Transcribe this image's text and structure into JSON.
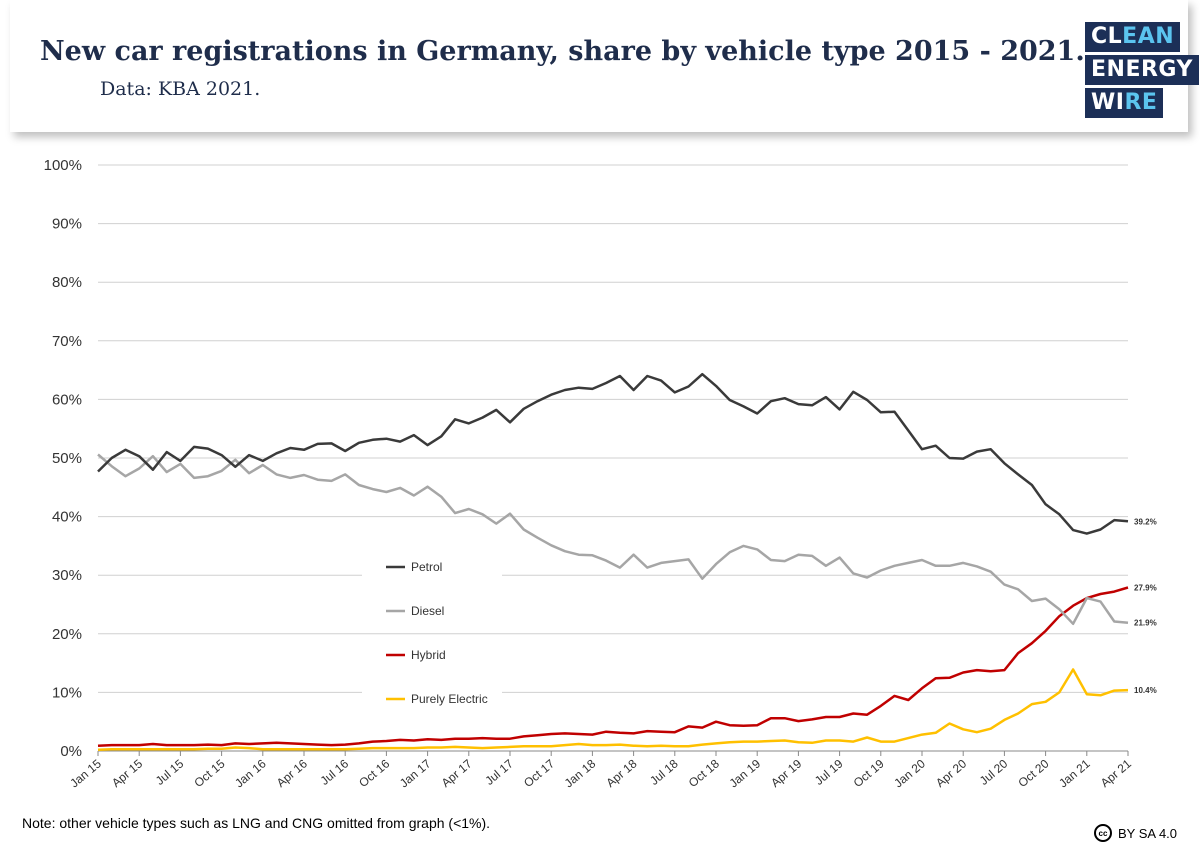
{
  "header": {
    "title": "New car registrations in Germany, share by vehicle type 2015 - 2021.",
    "subtitle": "Data: KBA 2021."
  },
  "logo": {
    "line1_a": "CL",
    "line1_b": "EAN",
    "line2_a": "ENERGY",
    "line2_b": "",
    "line3_a": "WI",
    "line3_b": "RE"
  },
  "footer": {
    "note": "Note: other vehicle types such as LNG and CNG omitted from graph (<1%).",
    "license": "BY SA 4.0",
    "cc_symbol": "cc"
  },
  "colors": {
    "petrol": "#3a3a3a",
    "diesel": "#a6a6a6",
    "hybrid": "#c00000",
    "electric": "#ffc000",
    "grid": "#d0d0d0",
    "logo_bg": "#1c2f57",
    "logo_accent": "#5bc4ef"
  },
  "chart_data": {
    "type": "line",
    "title": "New car registrations in Germany, share by vehicle type 2015 - 2021.",
    "ylim": [
      0,
      100
    ],
    "y_ticks": [
      "0%",
      "10%",
      "20%",
      "30%",
      "40%",
      "50%",
      "60%",
      "70%",
      "80%",
      "90%",
      "100%"
    ],
    "x_tick_labels": [
      "Jan 15",
      "Apr 15",
      "Jul 15",
      "Oct 15",
      "Jan 16",
      "Apr 16",
      "Jul 16",
      "Oct 16",
      "Jan 17",
      "Apr 17",
      "Jul 17",
      "Oct 17",
      "Jan 18",
      "Apr 18",
      "Jul 18",
      "Oct 18",
      "Jan 19",
      "Apr 19",
      "Jul 19",
      "Oct 19",
      "Jan 20",
      "Apr 20",
      "Jul 20",
      "Oct 20",
      "Jan 21",
      "Apr 21"
    ],
    "x_months_count": 76,
    "legend_position": "center-left",
    "grid": true,
    "series": [
      {
        "name": "Petrol",
        "color": "#3a3a3a",
        "end_label": "39.2%",
        "values": [
          47.7,
          50.0,
          51.4,
          50.3,
          48.0,
          51.0,
          49.5,
          51.9,
          51.6,
          50.5,
          48.5,
          50.5,
          49.5,
          50.8,
          51.7,
          51.4,
          52.4,
          52.5,
          51.2,
          52.6,
          53.1,
          53.3,
          52.8,
          53.9,
          52.2,
          53.7,
          56.6,
          55.9,
          56.9,
          58.2,
          56.1,
          58.4,
          59.7,
          60.8,
          61.6,
          62.0,
          61.8,
          62.8,
          64.0,
          61.6,
          64.0,
          63.2,
          61.2,
          62.2,
          64.3,
          62.3,
          59.9,
          58.8,
          57.6,
          59.7,
          60.2,
          59.2,
          59.0,
          60.4,
          58.3,
          61.3,
          59.9,
          57.8,
          57.9,
          54.7,
          51.5,
          52.1,
          50.0,
          49.9,
          51.1,
          51.5,
          49.1,
          47.2,
          45.4,
          42.1,
          40.4,
          37.7,
          37.1,
          37.8,
          39.4,
          39.2
        ]
      },
      {
        "name": "Diesel",
        "color": "#a6a6a6",
        "end_label": "21.9%",
        "values": [
          50.6,
          48.6,
          46.9,
          48.2,
          50.3,
          47.6,
          49.0,
          46.6,
          46.9,
          47.8,
          49.7,
          47.4,
          48.8,
          47.2,
          46.6,
          47.1,
          46.3,
          46.1,
          47.2,
          45.4,
          44.7,
          44.2,
          44.9,
          43.6,
          45.1,
          43.4,
          40.6,
          41.3,
          40.4,
          38.8,
          40.5,
          37.8,
          36.4,
          35.1,
          34.1,
          33.5,
          33.4,
          32.5,
          31.3,
          33.5,
          31.3,
          32.1,
          32.4,
          32.7,
          29.4,
          31.9,
          33.9,
          35.0,
          34.4,
          32.6,
          32.4,
          33.5,
          33.3,
          31.6,
          33.0,
          30.3,
          29.6,
          30.8,
          31.6,
          32.1,
          32.6,
          31.6,
          31.6,
          32.1,
          31.5,
          30.6,
          28.4,
          27.6,
          25.6,
          26.0,
          24.2,
          21.7,
          26.1,
          25.5,
          22.1,
          21.9
        ]
      },
      {
        "name": "Hybrid",
        "color": "#c00000",
        "end_label": "27.9%",
        "values": [
          0.9,
          1.0,
          1.0,
          1.0,
          1.2,
          1.0,
          1.0,
          1.0,
          1.1,
          1.0,
          1.3,
          1.2,
          1.3,
          1.4,
          1.3,
          1.2,
          1.1,
          1.0,
          1.1,
          1.3,
          1.6,
          1.7,
          1.9,
          1.8,
          2.0,
          1.9,
          2.1,
          2.1,
          2.2,
          2.1,
          2.1,
          2.5,
          2.7,
          2.9,
          3.0,
          2.9,
          2.8,
          3.3,
          3.1,
          3.0,
          3.4,
          3.3,
          3.2,
          4.2,
          4.0,
          5.0,
          4.4,
          4.3,
          4.4,
          5.6,
          5.6,
          5.1,
          5.4,
          5.8,
          5.8,
          6.4,
          6.2,
          7.7,
          9.4,
          8.7,
          10.7,
          12.4,
          12.5,
          13.4,
          13.8,
          13.6,
          13.8,
          16.7,
          18.4,
          20.5,
          23.0,
          24.8,
          26.1,
          26.8,
          27.2,
          27.9
        ]
      },
      {
        "name": "Purely Electric",
        "color": "#ffc000",
        "end_label": "10.4%",
        "values": [
          0.2,
          0.3,
          0.3,
          0.3,
          0.3,
          0.3,
          0.3,
          0.3,
          0.4,
          0.4,
          0.6,
          0.5,
          0.3,
          0.3,
          0.3,
          0.3,
          0.3,
          0.3,
          0.3,
          0.4,
          0.5,
          0.5,
          0.5,
          0.5,
          0.6,
          0.6,
          0.7,
          0.6,
          0.5,
          0.6,
          0.7,
          0.8,
          0.8,
          0.8,
          1.0,
          1.2,
          1.0,
          1.0,
          1.1,
          0.9,
          0.8,
          0.9,
          0.8,
          0.8,
          1.1,
          1.3,
          1.5,
          1.6,
          1.6,
          1.7,
          1.8,
          1.5,
          1.4,
          1.8,
          1.8,
          1.6,
          2.3,
          1.6,
          1.6,
          2.2,
          2.8,
          3.1,
          4.7,
          3.7,
          3.2,
          3.8,
          5.3,
          6.4,
          8.0,
          8.4,
          10.0,
          13.9,
          9.7,
          9.5,
          10.3,
          10.4
        ]
      }
    ]
  }
}
